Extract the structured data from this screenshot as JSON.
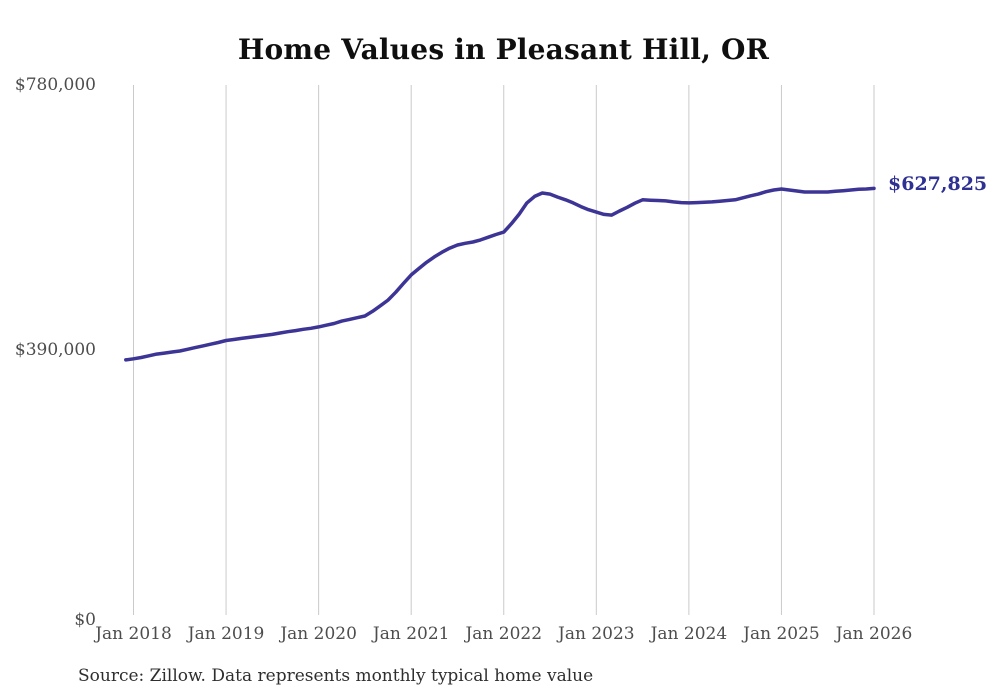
{
  "title": "Home Values in Pleasant Hill, OR",
  "source_note": "Source: Zillow. Data represents monthly typical home value",
  "end_label": "$627,825",
  "colors": {
    "line": "#3d3596",
    "end_label": "#2e3192",
    "gridline": "#cacaca",
    "axis_text": "#4d4d4d",
    "title_text": "#0f0f0f",
    "background": "#ffffff"
  },
  "chart_data": {
    "type": "line",
    "title": "Home Values in Pleasant Hill, OR",
    "xlabel": "",
    "ylabel": "",
    "ylim": [
      0,
      780000
    ],
    "grid": "vertical-only",
    "x_tick_labels": [
      "Jan 2018",
      "Jan 2019",
      "Jan 2020",
      "Jan 2021",
      "Jan 2022",
      "Jan 2023",
      "Jan 2024",
      "Jan 2025",
      "Jan 2026"
    ],
    "y_ticks": [
      {
        "label": "$780,000",
        "value": 780000
      },
      {
        "label": "$390,000",
        "value": 390000
      },
      {
        "label": "$0",
        "value": 0
      }
    ],
    "end_value": 627825,
    "end_label": "$627,825",
    "series": [
      {
        "name": "Monthly typical home value",
        "start_month": "2017-12",
        "interval": "monthly",
        "start_offset_months": -1,
        "values": [
          375500,
          377000,
          379000,
          381500,
          384000,
          385500,
          387000,
          388500,
          391000,
          393500,
          396000,
          398500,
          401000,
          404000,
          405500,
          407000,
          408500,
          410000,
          411500,
          413000,
          415000,
          417000,
          418500,
          420500,
          422000,
          424000,
          426500,
          429000,
          432500,
          435000,
          437500,
          440000,
          447000,
          455000,
          463500,
          475000,
          488000,
          500500,
          510000,
          519000,
          527000,
          534000,
          540000,
          544500,
          547000,
          549000,
          552000,
          556000,
          560000,
          563500,
          576000,
          590000,
          606500,
          616000,
          621000,
          619500,
          615000,
          611000,
          606500,
          601000,
          596500,
          593000,
          589500,
          588500,
          594500,
          600000,
          606000,
          611000,
          610500,
          610000,
          609500,
          608000,
          607000,
          606500,
          607000,
          607500,
          608000,
          609000,
          610000,
          611000,
          614000,
          617000,
          619500,
          623000,
          625500,
          627000,
          625500,
          624000,
          622500,
          622500,
          622500,
          622500,
          623500,
          624500,
          625500,
          626500,
          627000,
          627825
        ]
      }
    ]
  }
}
